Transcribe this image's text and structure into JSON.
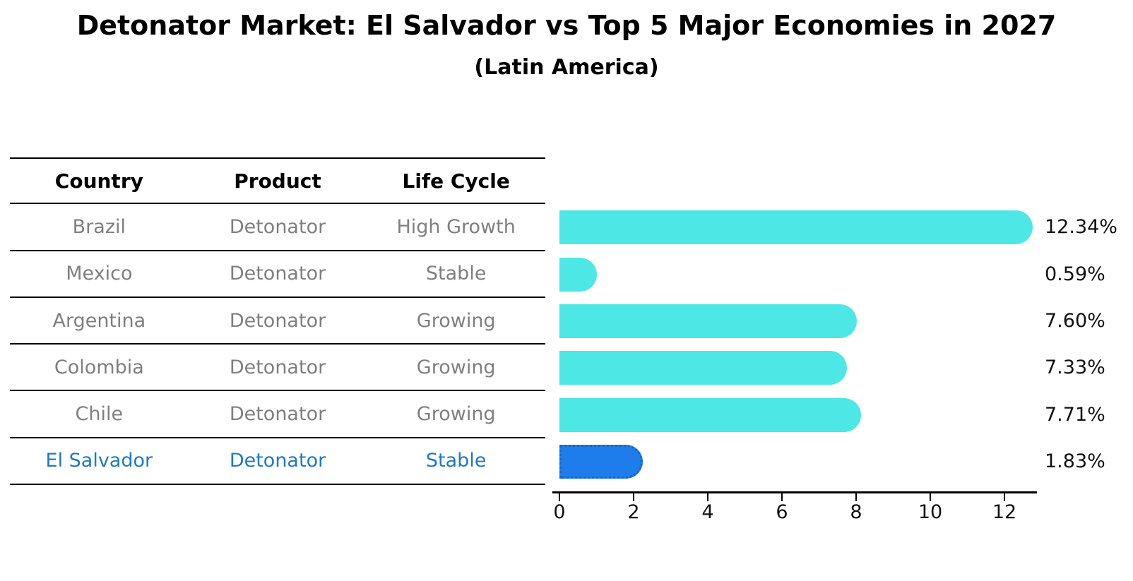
{
  "title": "Detonator Market: El Salvador vs Top 5 Major Economies in 2027",
  "subtitle": "(Latin America)",
  "table": {
    "headers": [
      "Country",
      "Product",
      "Life Cycle"
    ],
    "rows": [
      {
        "country": "Brazil",
        "product": "Detonator",
        "life_cycle": "High Growth",
        "highlight": false
      },
      {
        "country": "Mexico",
        "product": "Detonator",
        "life_cycle": "Stable",
        "highlight": false
      },
      {
        "country": "Argentina",
        "product": "Detonator",
        "life_cycle": "Growing",
        "highlight": false
      },
      {
        "country": "Colombia",
        "product": "Detonator",
        "life_cycle": "Growing",
        "highlight": false
      },
      {
        "country": "Chile",
        "product": "Detonator",
        "life_cycle": "Growing",
        "highlight": false
      },
      {
        "country": "El Salvador",
        "product": "Detonator",
        "life_cycle": "Stable",
        "highlight": true
      }
    ]
  },
  "chart_data": {
    "type": "bar",
    "orientation": "horizontal",
    "title": "Detonator Market: El Salvador vs Top 5 Major Economies in 2027",
    "subtitle": "(Latin America)",
    "categories": [
      "Brazil",
      "Mexico",
      "Argentina",
      "Colombia",
      "Chile",
      "El Salvador"
    ],
    "values": [
      12.34,
      0.59,
      7.6,
      7.33,
      7.71,
      1.83
    ],
    "value_labels": [
      "12.34%",
      "0.59%",
      "7.60%",
      "7.33%",
      "7.71%",
      "1.83%"
    ],
    "highlight_index": 5,
    "xlim": [
      0,
      13.2
    ],
    "xticks": [
      0,
      2,
      4,
      6,
      8,
      10,
      12
    ],
    "xlabel": "",
    "ylabel": "",
    "grid": false,
    "legend": "none",
    "colors": {
      "bar": "#4DE7E5",
      "highlight_bar": "#1E7DEB",
      "highlight_bar_border": "#1565D0",
      "table_text": "#7F7F7F",
      "highlight_text": "#1F78C8",
      "axis": "#000000"
    }
  }
}
